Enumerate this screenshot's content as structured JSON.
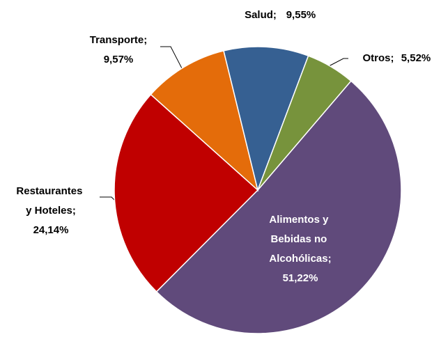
{
  "chart_data": {
    "type": "pie",
    "categories": [
      "Alimentos y Bebidas no Alcohólicas;",
      "Restaurantes y Hoteles;",
      "Transporte;",
      "Salud;",
      "Otros;"
    ],
    "values": [
      51.22,
      24.14,
      9.57,
      9.55,
      5.52
    ],
    "value_labels": [
      "51,22%",
      "24,14%",
      "9,57%",
      "9,55%",
      "5,52%"
    ],
    "colors": [
      "#604a7b",
      "#c00000",
      "#e46c0a",
      "#366092",
      "#77933c"
    ]
  }
}
